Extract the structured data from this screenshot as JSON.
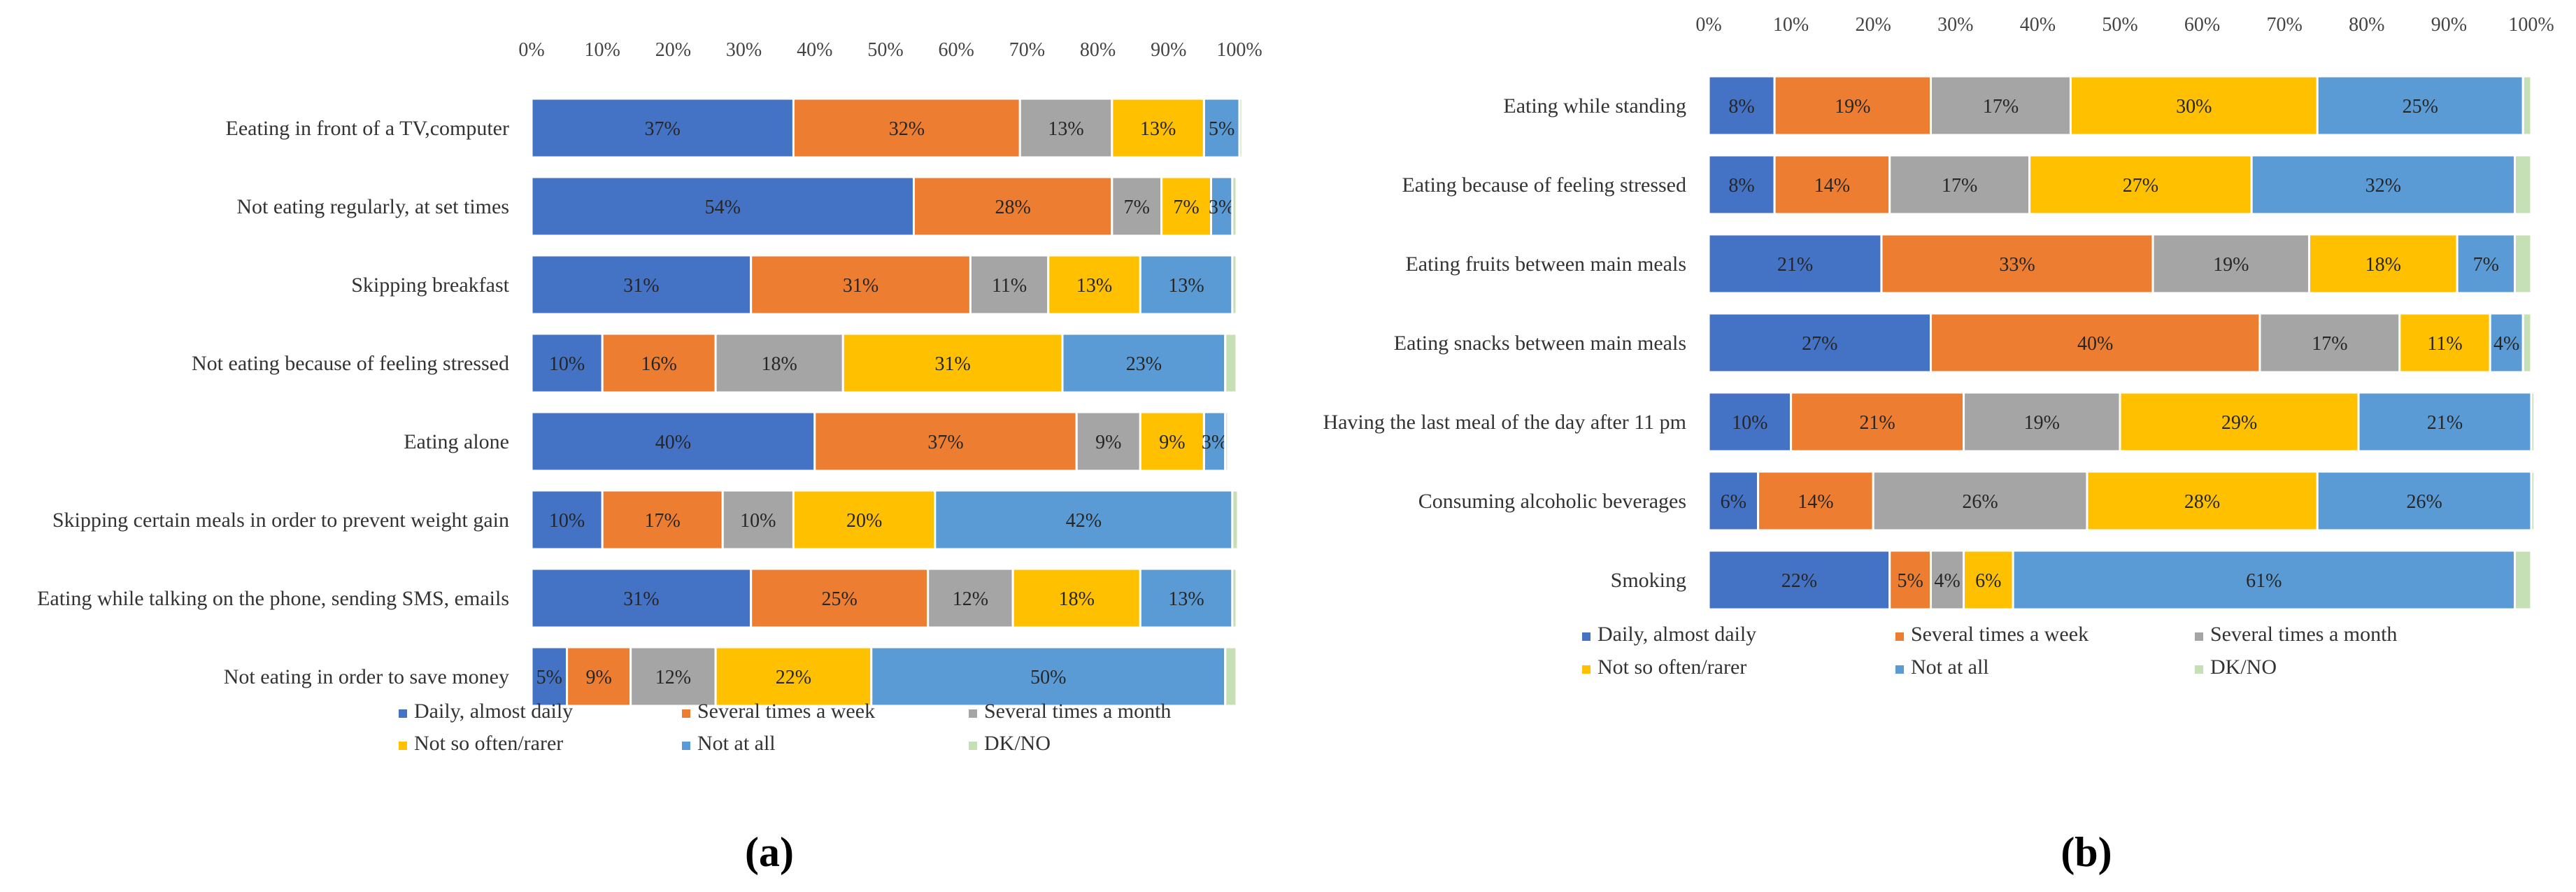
{
  "chart_data": [
    {
      "type": "bar",
      "orientation": "horizontal",
      "stacked": true,
      "panel_label": "(a)",
      "title": "",
      "xlabel": "",
      "ylabel": "",
      "xlim": [
        0,
        100
      ],
      "ticks": [
        "0%",
        "10%",
        "20%",
        "30%",
        "40%",
        "50%",
        "60%",
        "70%",
        "80%",
        "90%",
        "100%"
      ],
      "legend_position": "bottom",
      "categories": [
        "Eeating in front of a TV,computer",
        "Not eating regularly, at set times",
        "Skipping breakfast",
        "Not eating because of feeling stressed",
        "Eating alone",
        "Skipping certain meals in order to prevent weight gain",
        "Eating while talking on the phone, sending SMS, emails",
        "Not eating in order to save money"
      ],
      "series": [
        {
          "name": "Daily, almost daily",
          "color": "#4472C4",
          "values": [
            37,
            54,
            31,
            10,
            40,
            10,
            31,
            5
          ]
        },
        {
          "name": "Several times a week",
          "color": "#ED7D31",
          "values": [
            32,
            28,
            31,
            16,
            37,
            17,
            25,
            9
          ]
        },
        {
          "name": "Several times a month",
          "color": "#A5A5A5",
          "values": [
            13,
            7,
            11,
            18,
            9,
            10,
            12,
            12
          ]
        },
        {
          "name": "Not so often/rarer",
          "color": "#FFC000",
          "values": [
            13,
            7,
            13,
            31,
            9,
            20,
            18,
            22
          ]
        },
        {
          "name": "Not at all",
          "color": "#5B9BD5",
          "values": [
            5,
            3,
            13,
            23,
            3,
            42,
            13,
            50
          ]
        },
        {
          "name": "DK/NO",
          "color": "#C5E0B4",
          "values": [
            0.4,
            0.6,
            0.6,
            1.6,
            0.4,
            0.8,
            0.6,
            1.6
          ]
        }
      ]
    },
    {
      "type": "bar",
      "orientation": "horizontal",
      "stacked": true,
      "panel_label": "(b)",
      "title": "",
      "xlabel": "",
      "ylabel": "",
      "xlim": [
        0,
        100
      ],
      "ticks": [
        "0%",
        "10%",
        "20%",
        "30%",
        "40%",
        "50%",
        "60%",
        "70%",
        "80%",
        "90%",
        "100%"
      ],
      "legend_position": "bottom",
      "categories": [
        "Eating while standing",
        "Eating because of feeling stressed",
        "Eating fruits between main meals",
        "Eating snacks between main meals",
        "Having the last meal of the day after 11 pm",
        "Consuming alcoholic beverages",
        "Smoking"
      ],
      "series": [
        {
          "name": "Daily, almost daily",
          "color": "#4472C4",
          "values": [
            8,
            8,
            21,
            27,
            10,
            6,
            22
          ]
        },
        {
          "name": "Several times a week",
          "color": "#ED7D31",
          "values": [
            19,
            14,
            33,
            40,
            21,
            14,
            5
          ]
        },
        {
          "name": "Several times a month",
          "color": "#A5A5A5",
          "values": [
            17,
            17,
            19,
            17,
            19,
            26,
            4
          ]
        },
        {
          "name": "Not so often/rarer",
          "color": "#FFC000",
          "values": [
            30,
            27,
            18,
            11,
            29,
            28,
            6
          ]
        },
        {
          "name": "Not at all",
          "color": "#5B9BD5",
          "values": [
            25,
            32,
            7,
            4,
            21,
            26,
            61
          ]
        },
        {
          "name": "DK/NO",
          "color": "#C5E0B4",
          "values": [
            1,
            2,
            2,
            1,
            0.4,
            0.4,
            2
          ]
        }
      ]
    }
  ]
}
